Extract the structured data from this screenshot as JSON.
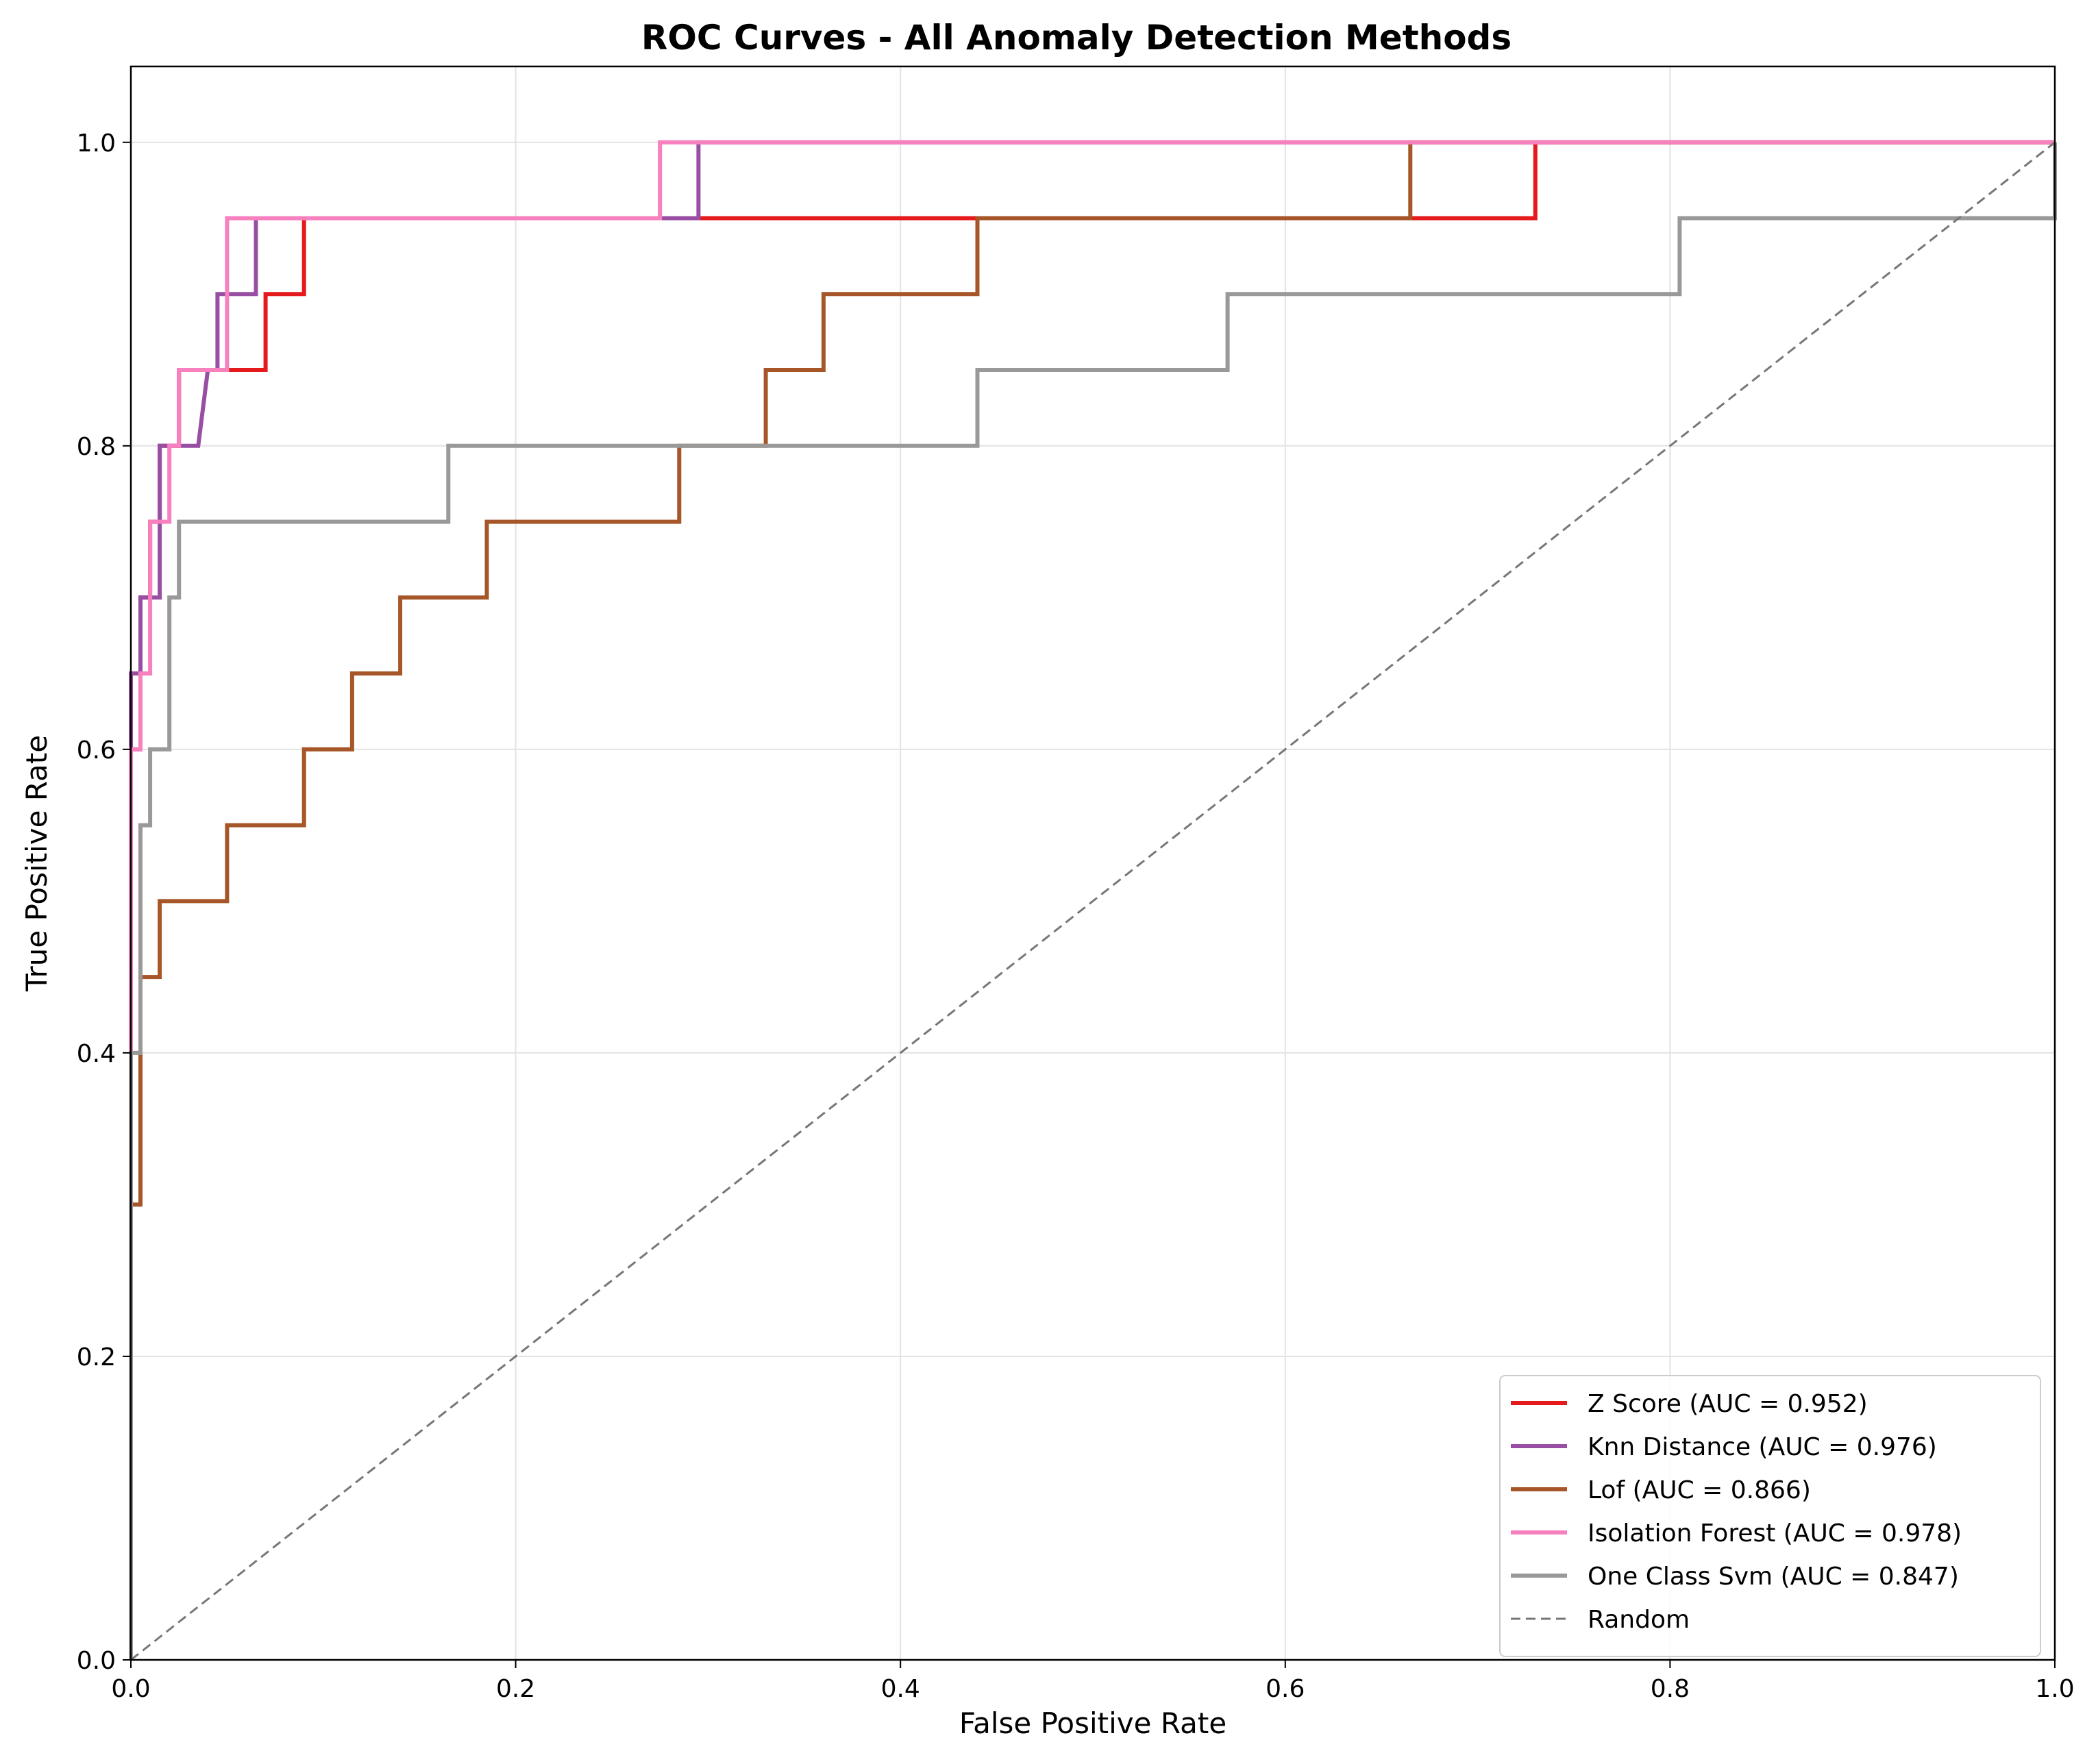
{
  "chart_data": {
    "type": "line",
    "title": "ROC Curves - All Anomaly Detection Methods",
    "xlabel": "False Positive Rate",
    "ylabel": "True Positive Rate",
    "xlim": [
      0,
      1
    ],
    "ylim": [
      0,
      1.05
    ],
    "xticks": [
      "0.0",
      "0.2",
      "0.4",
      "0.6",
      "0.8",
      "1.0"
    ],
    "yticks": [
      "0.0",
      "0.2",
      "0.4",
      "0.6",
      "0.8",
      "1.0"
    ],
    "grid": true,
    "legend_position": "lower-right",
    "series": [
      {
        "name": "Z Score (AUC = 0.952)",
        "color": "#e41a1c",
        "x": [
          0,
          0,
          0.005,
          0.005,
          0.01,
          0.01,
          0.015,
          0.015,
          0.025,
          0.025,
          0.035,
          0.035,
          0.07,
          0.07,
          0.09,
          0.09,
          0.73,
          0.73,
          1.0
        ],
        "y": [
          0,
          0.6,
          0.6,
          0.7,
          0.7,
          0.75,
          0.75,
          0.8,
          0.8,
          0.85,
          0.85,
          0.85,
          0.85,
          0.9,
          0.9,
          0.95,
          0.95,
          1.0,
          1.0
        ]
      },
      {
        "name": "Knn Distance (AUC = 0.976)",
        "color": "#984ea3",
        "x": [
          0,
          0,
          0.005,
          0.005,
          0.015,
          0.015,
          0.035,
          0.04,
          0.045,
          0.045,
          0.065,
          0.065,
          0.295,
          0.295,
          1.0
        ],
        "y": [
          0,
          0.65,
          0.65,
          0.7,
          0.7,
          0.8,
          0.8,
          0.85,
          0.85,
          0.9,
          0.9,
          0.95,
          0.95,
          1.0,
          1.0
        ]
      },
      {
        "name": "Lof (AUC = 0.866)",
        "color": "#a65628",
        "x": [
          0,
          0,
          0.005,
          0.005,
          0.015,
          0.015,
          0.05,
          0.05,
          0.09,
          0.09,
          0.115,
          0.115,
          0.14,
          0.14,
          0.185,
          0.185,
          0.285,
          0.285,
          0.33,
          0.33,
          0.36,
          0.36,
          0.44,
          0.44,
          0.665,
          0.665,
          1.0
        ],
        "y": [
          0,
          0.3,
          0.3,
          0.45,
          0.45,
          0.5,
          0.5,
          0.55,
          0.55,
          0.6,
          0.6,
          0.65,
          0.65,
          0.7,
          0.7,
          0.75,
          0.75,
          0.8,
          0.8,
          0.85,
          0.85,
          0.9,
          0.9,
          0.95,
          0.95,
          1.0,
          1.0
        ]
      },
      {
        "name": "Isolation Forest (AUC = 0.978)",
        "color": "#f781bf",
        "x": [
          0,
          0,
          0.005,
          0.005,
          0.01,
          0.01,
          0.02,
          0.02,
          0.025,
          0.025,
          0.05,
          0.05,
          0.275,
          0.275,
          1.0
        ],
        "y": [
          0,
          0.6,
          0.6,
          0.65,
          0.65,
          0.75,
          0.75,
          0.8,
          0.8,
          0.85,
          0.85,
          0.95,
          0.95,
          1.0,
          1.0
        ]
      },
      {
        "name": "One Class Svm (AUC = 0.847)",
        "color": "#999999",
        "x": [
          0,
          0,
          0.005,
          0.005,
          0.01,
          0.01,
          0.02,
          0.02,
          0.025,
          0.025,
          0.165,
          0.165,
          0.44,
          0.44,
          0.57,
          0.57,
          0.805,
          0.805,
          1.0,
          1.0
        ],
        "y": [
          0,
          0.4,
          0.4,
          0.55,
          0.55,
          0.6,
          0.6,
          0.7,
          0.7,
          0.75,
          0.75,
          0.8,
          0.8,
          0.85,
          0.85,
          0.9,
          0.9,
          0.95,
          0.95,
          1.0
        ]
      },
      {
        "name": "Random",
        "color": "#777777",
        "dashed": true,
        "x": [
          0,
          1
        ],
        "y": [
          0,
          1
        ]
      }
    ]
  }
}
